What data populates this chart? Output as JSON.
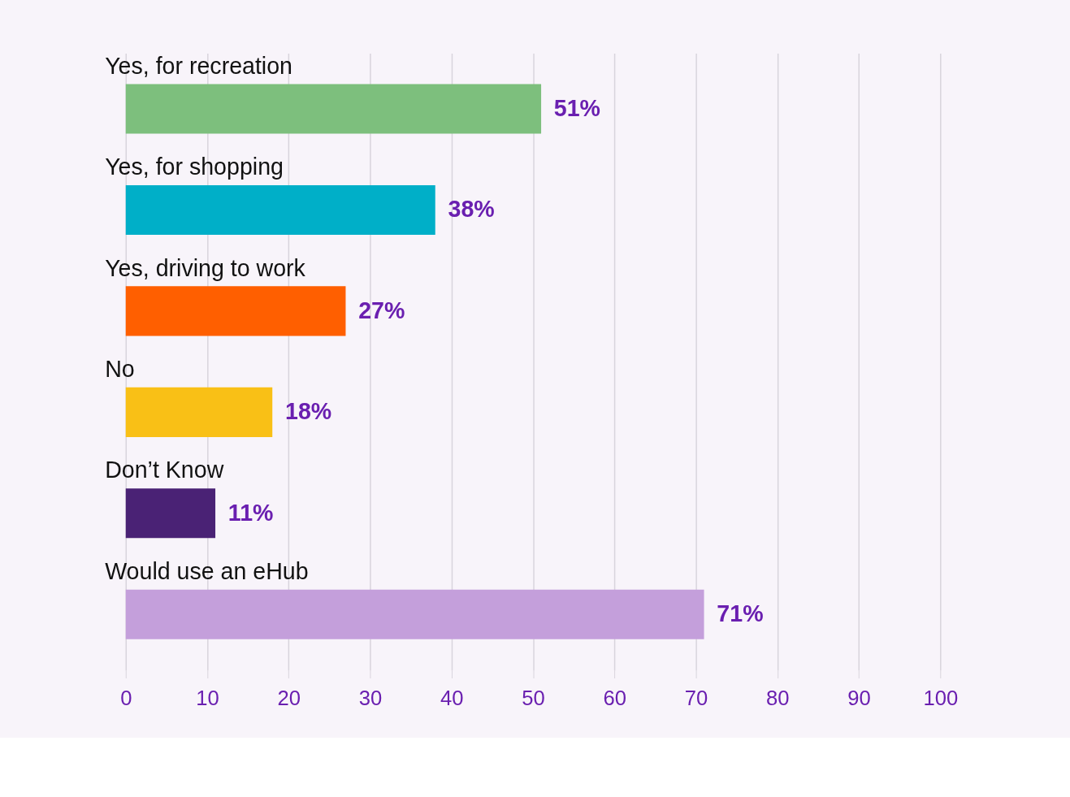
{
  "chart_data": {
    "type": "bar",
    "orientation": "horizontal",
    "categories": [
      "Yes, for recreation",
      "Yes, for shopping",
      "Yes, driving to work",
      "No",
      "Don’t Know",
      "Would use an eHub"
    ],
    "values": [
      51,
      38,
      27,
      18,
      11,
      71
    ],
    "colors": [
      "#7dbf7d",
      "#00afc8",
      "#ff5f00",
      "#f9c016",
      "#4a2275",
      "#c49fdb"
    ],
    "value_labels": [
      "51%",
      "38%",
      "27%",
      "18%",
      "11%",
      "71%"
    ],
    "xlim": [
      0,
      100
    ],
    "xticks": [
      0,
      10,
      20,
      30,
      40,
      50,
      60,
      70,
      80,
      90,
      100
    ],
    "grid": "x"
  }
}
